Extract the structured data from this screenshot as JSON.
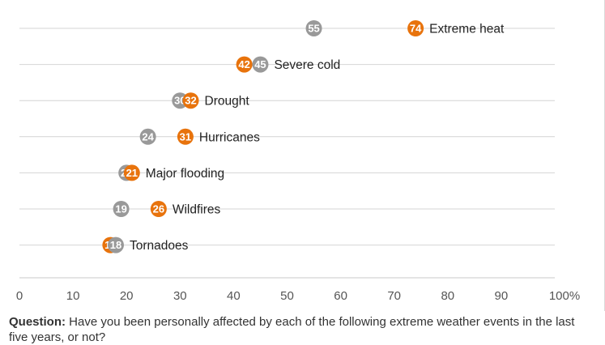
{
  "chart_data": {
    "type": "dot",
    "categories": [
      "Extreme heat",
      "Severe cold",
      "Drought",
      "Hurricanes",
      "Major flooding",
      "Wildfires",
      "Tornadoes"
    ],
    "series": [
      {
        "color": "#999999",
        "values": [
          55,
          45,
          30,
          24,
          20,
          19,
          18
        ]
      },
      {
        "color": "#e8730c",
        "values": [
          74,
          42,
          32,
          31,
          21,
          26,
          17
        ]
      }
    ],
    "xlim": [
      0,
      100
    ],
    "xticks": [
      "0",
      "10",
      "20",
      "30",
      "40",
      "50",
      "60",
      "70",
      "80",
      "90",
      "100"
    ],
    "x_unit": "%",
    "grid": true,
    "legend": "none"
  },
  "note": {
    "label": "Question:",
    "text": "Have you been personally affected by each of the following extreme weather events in the last five years, or not?"
  }
}
